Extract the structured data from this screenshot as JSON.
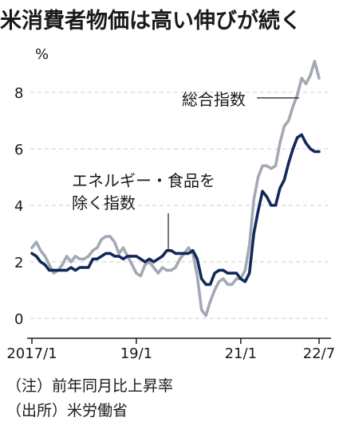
{
  "title": "米消費者物価は高い伸びが続く",
  "unit": "%",
  "notes": [
    "（注）前年同月比上昇率",
    "（出所）米労働省"
  ],
  "colors": {
    "headline": "#a3a8b4",
    "core": "#13285a",
    "grid": "#cfcfcf",
    "axis": "#1a1a1a"
  },
  "chart_data": {
    "type": "line",
    "title": "米消費者物価は高い伸びが続く",
    "ylabel": "%",
    "xlabel": "",
    "ylim": [
      0,
      9.3
    ],
    "yticks": [
      0,
      2,
      4,
      6,
      8
    ],
    "grid": true,
    "x_start": "2017-01",
    "x_end": "2022-07",
    "xticks": [
      {
        "at": "2017-01",
        "label": "2017/1"
      },
      {
        "at": "2019-01",
        "label": "19/1"
      },
      {
        "at": "2021-01",
        "label": "21/1"
      },
      {
        "at": "2022-07",
        "label": "22/7"
      }
    ],
    "series": [
      {
        "name": "総合指数",
        "values": [
          2.5,
          2.7,
          2.4,
          2.2,
          1.9,
          1.6,
          1.7,
          1.9,
          2.2,
          2.0,
          2.2,
          2.1,
          2.1,
          2.2,
          2.4,
          2.5,
          2.8,
          2.9,
          2.9,
          2.7,
          2.3,
          2.5,
          2.2,
          1.9,
          1.6,
          1.5,
          1.9,
          2.0,
          1.8,
          1.6,
          1.8,
          1.7,
          1.7,
          1.8,
          2.1,
          2.3,
          2.5,
          2.3,
          1.5,
          0.3,
          0.1,
          0.6,
          1.0,
          1.3,
          1.4,
          1.2,
          1.2,
          1.4,
          1.4,
          1.7,
          2.6,
          4.2,
          5.0,
          5.4,
          5.4,
          5.3,
          5.4,
          6.2,
          6.8,
          7.0,
          7.5,
          7.9,
          8.5,
          8.3,
          8.6,
          9.1,
          8.5
        ]
      },
      {
        "name": "エネルギー・食品を除く指数",
        "values": [
          2.3,
          2.2,
          2.0,
          1.9,
          1.7,
          1.7,
          1.7,
          1.7,
          1.7,
          1.8,
          1.7,
          1.8,
          1.8,
          1.8,
          2.1,
          2.1,
          2.2,
          2.3,
          2.3,
          2.2,
          2.2,
          2.1,
          2.2,
          2.2,
          2.2,
          2.1,
          2.0,
          2.1,
          2.0,
          2.1,
          2.2,
          2.4,
          2.4,
          2.3,
          2.3,
          2.3,
          2.3,
          2.4,
          2.1,
          1.4,
          1.2,
          1.2,
          1.6,
          1.7,
          1.7,
          1.6,
          1.6,
          1.6,
          1.4,
          1.3,
          1.6,
          3.0,
          3.8,
          4.5,
          4.3,
          4.0,
          4.0,
          4.6,
          4.9,
          5.5,
          6.0,
          6.4,
          6.5,
          6.2,
          6.0,
          5.9,
          5.9
        ]
      }
    ]
  }
}
